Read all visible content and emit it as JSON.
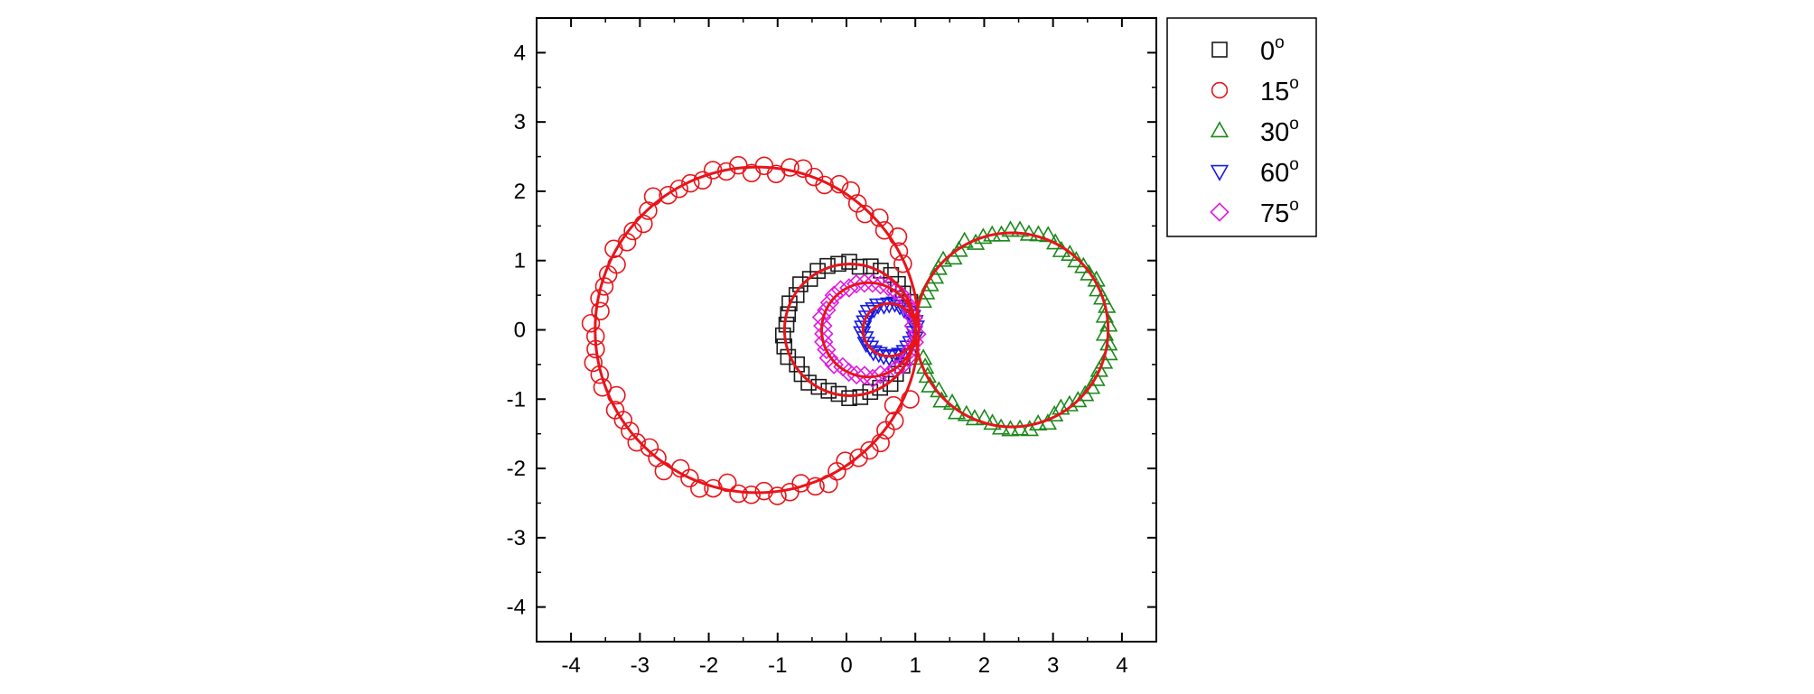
{
  "chart_data": {
    "type": "scatter",
    "title": "",
    "xlabel": "",
    "ylabel": "",
    "xlim": [
      -4.5,
      4.5
    ],
    "ylim": [
      -4.5,
      4.5
    ],
    "x_ticks": [
      -4,
      -3,
      -2,
      -1,
      0,
      1,
      2,
      3,
      4
    ],
    "y_ticks": [
      -4,
      -3,
      -2,
      -1,
      0,
      1,
      2,
      3,
      4
    ],
    "x_tick_labels": [
      "-4",
      "-3",
      "-2",
      "-1",
      "0",
      "1",
      "2",
      "3",
      "4"
    ],
    "y_tick_labels": [
      "-4",
      "-3",
      "-2",
      "-1",
      "0",
      "1",
      "2",
      "3",
      "4"
    ],
    "grid": false,
    "legend_position": "outside-top-right",
    "fit_color": "#e8141a",
    "series": [
      {
        "name": "0",
        "label_sup": "o",
        "marker": "square",
        "color": "#1a1a1a",
        "circle": {
          "cx": 0.05,
          "cy": 0,
          "r": 0.95
        },
        "arc_deg": [
          20,
          340
        ],
        "count": 34,
        "points": []
      },
      {
        "name": "15",
        "label_sup": "o",
        "marker": "circle",
        "color": "#e8141a",
        "circle": {
          "cx": -1.3,
          "cy": 0,
          "r": 2.35
        },
        "arc_deg": [
          22,
          338
        ],
        "count": 70,
        "points": []
      },
      {
        "name": "30",
        "label_sup": "o",
        "marker": "triangle-up",
        "color": "#1a8a1a",
        "circle": {
          "cx": 2.4,
          "cy": 0,
          "r": 1.4
        },
        "arc_deg": [
          -165,
          165
        ],
        "count": 60,
        "points": []
      },
      {
        "name": "60",
        "label_sup": "o",
        "marker": "triangle-down",
        "color": "#1a1adc",
        "circle": {
          "cx": 0.62,
          "cy": 0,
          "r": 0.38
        },
        "arc_deg": [
          0,
          360
        ],
        "count": 30,
        "points": []
      },
      {
        "name": "75",
        "label_sup": "o",
        "marker": "diamond",
        "color": "#e01ae0",
        "circle": {
          "cx": 0.32,
          "cy": 0,
          "r": 0.68
        },
        "arc_deg": [
          0,
          360
        ],
        "count": 36,
        "points": []
      }
    ],
    "fits": [
      {
        "cx": 0.05,
        "cy": 0,
        "r": 0.95
      },
      {
        "cx": -1.3,
        "cy": 0,
        "r": 2.35
      },
      {
        "cx": 2.4,
        "cy": 0,
        "r": 1.4
      },
      {
        "cx": 0.62,
        "cy": 0,
        "r": 0.38
      },
      {
        "cx": 0.32,
        "cy": 0,
        "r": 0.68
      }
    ]
  }
}
